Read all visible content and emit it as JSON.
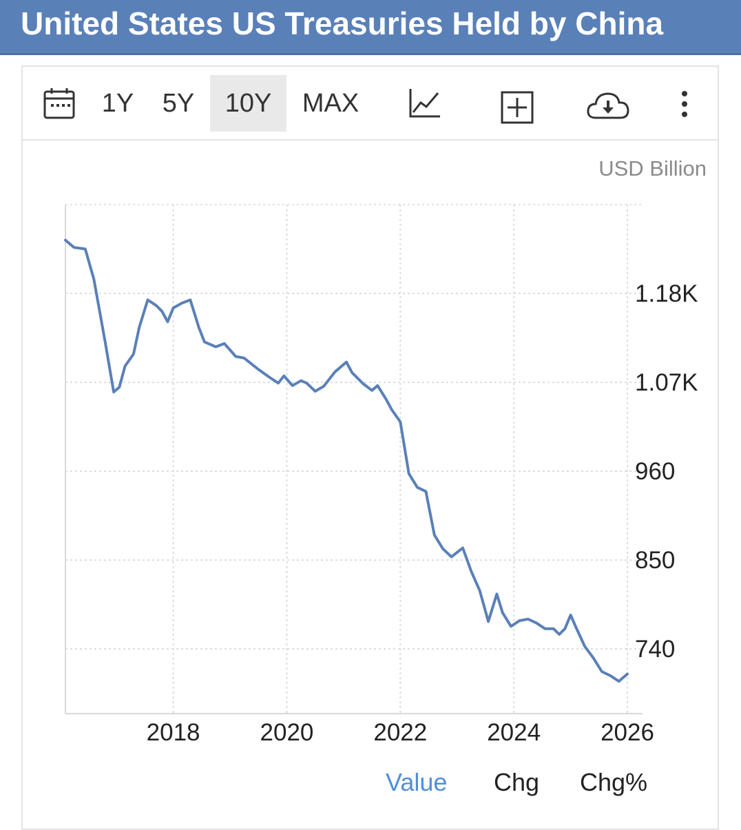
{
  "header": {
    "title": "United States US Treasuries Held by China"
  },
  "toolbar": {
    "ranges": [
      "1Y",
      "5Y",
      "10Y",
      "MAX"
    ],
    "active_range": "10Y",
    "icons": [
      "calendar-icon",
      "line-chart-icon",
      "add-icon",
      "download-cloud-icon",
      "more-vertical-icon"
    ]
  },
  "footer": {
    "tabs": [
      "Value",
      "Chg",
      "Chg%"
    ],
    "active_tab": "Value"
  },
  "colors": {
    "header_bg": "#5a80b8",
    "line": "#5a80b8",
    "active_tab": "#4f8fd6"
  },
  "chart_data": {
    "type": "line",
    "unit_label": "USD Billion",
    "x_ticks": [
      "2018",
      "2020",
      "2022",
      "2024",
      "2026"
    ],
    "y_ticks": [
      "1.18K",
      "1.07K",
      "960",
      "850",
      "740"
    ],
    "y_tick_values": [
      1180,
      1070,
      960,
      850,
      740
    ],
    "xlim": [
      2016.1,
      2026.0
    ],
    "ylim": [
      660,
      1290
    ],
    "grid": true,
    "legend": "none",
    "series": [
      {
        "x": [
          2016.1,
          2016.25,
          2016.45,
          2016.6,
          2016.8,
          2016.95,
          2017.05,
          2017.15,
          2017.3,
          2017.4,
          2017.55,
          2017.7,
          2017.8,
          2017.9,
          2018.0,
          2018.15,
          2018.3,
          2018.45,
          2018.55,
          2018.75,
          2018.9,
          2019.1,
          2019.25,
          2019.5,
          2019.7,
          2019.85,
          2019.95,
          2020.1,
          2020.25,
          2020.35,
          2020.5,
          2020.65,
          2020.85,
          2021.05,
          2021.15,
          2021.35,
          2021.5,
          2021.6,
          2021.75,
          2021.85,
          2022.0,
          2022.15,
          2022.3,
          2022.45,
          2022.6,
          2022.75,
          2022.9,
          2023.1,
          2023.25,
          2023.4,
          2023.55,
          2023.7,
          2023.8,
          2023.95,
          2024.1,
          2024.25,
          2024.4,
          2024.55,
          2024.7,
          2024.8,
          2024.9,
          2025.0,
          2025.1,
          2025.25,
          2025.4,
          2025.55,
          2025.7,
          2025.85,
          2026.0
        ],
        "values": [
          1246,
          1237,
          1235,
          1198,
          1120,
          1058,
          1064,
          1090,
          1105,
          1138,
          1172,
          1165,
          1158,
          1145,
          1162,
          1168,
          1172,
          1138,
          1120,
          1114,
          1118,
          1102,
          1100,
          1086,
          1076,
          1069,
          1078,
          1066,
          1072,
          1069,
          1059,
          1065,
          1083,
          1095,
          1082,
          1068,
          1060,
          1066,
          1049,
          1036,
          1021,
          957,
          940,
          935,
          881,
          864,
          854,
          865,
          836,
          812,
          774,
          808,
          785,
          768,
          775,
          777,
          772,
          765,
          765,
          758,
          765,
          782,
          766,
          743,
          729,
          712,
          707,
          700,
          709
        ]
      }
    ]
  }
}
